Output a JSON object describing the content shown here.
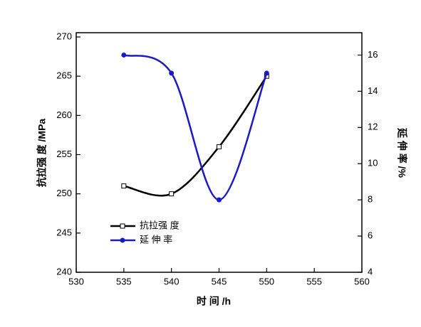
{
  "chart_data": {
    "type": "line",
    "x_label": "时 间 /h",
    "y_label": "抗拉强 度 /MPa",
    "y2_label": "延 伸 率 /%",
    "x": [
      535,
      540,
      545,
      550
    ],
    "series": [
      {
        "name": "抗拉强 度",
        "color": "#000000",
        "marker": "square",
        "values": [
          251,
          250,
          256,
          265
        ]
      },
      {
        "name": "延 伸 率",
        "color": "#1a1ac8",
        "marker": "circle",
        "axis": "y2",
        "values": [
          16,
          15,
          8,
          15
        ]
      }
    ],
    "xlim": [
      530,
      560
    ],
    "xticks": [
      530,
      535,
      540,
      545,
      550,
      555,
      560
    ],
    "ylim": [
      240,
      270
    ],
    "yticks": [
      240,
      245,
      250,
      255,
      260,
      265,
      270
    ],
    "y2lim": [
      4,
      17
    ],
    "y2ticks": [
      4,
      6,
      8,
      10,
      12,
      14,
      16
    ],
    "legend": "lower left"
  }
}
